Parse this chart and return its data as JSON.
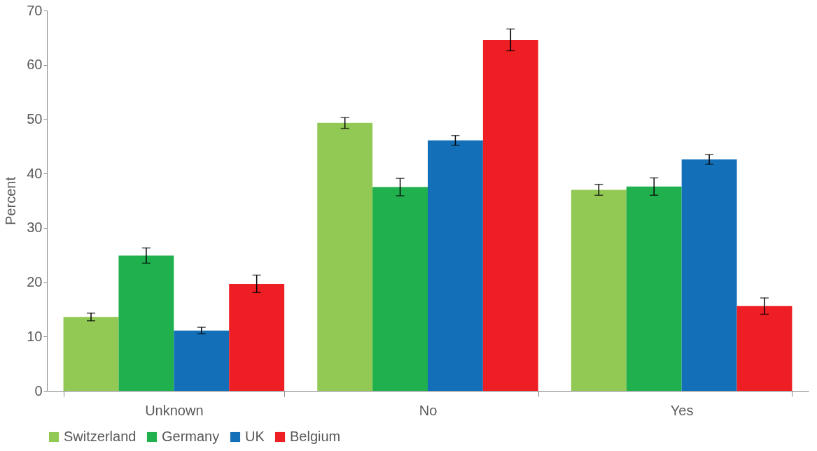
{
  "chart_data": {
    "type": "bar",
    "ylabel": "Percent",
    "categories": [
      "Unknown",
      "No",
      "Yes"
    ],
    "series": [
      {
        "name": "Switzerland",
        "color": "#92c955",
        "values": [
          13.6,
          49.3,
          37.0
        ],
        "errors": [
          0.7,
          1.0,
          1.0
        ]
      },
      {
        "name": "Germany",
        "color": "#21b04e",
        "values": [
          24.9,
          37.5,
          37.6
        ],
        "errors": [
          1.4,
          1.6,
          1.6
        ]
      },
      {
        "name": "UK",
        "color": "#1370b8",
        "values": [
          11.1,
          46.1,
          42.6
        ],
        "errors": [
          0.6,
          0.9,
          0.9
        ]
      },
      {
        "name": "Belgium",
        "color": "#ed1f24",
        "values": [
          19.7,
          64.6,
          15.6
        ],
        "errors": [
          1.6,
          2.0,
          1.5
        ]
      }
    ],
    "ylim": [
      0,
      70
    ],
    "yticks": [
      0,
      10,
      20,
      30,
      40,
      50,
      60,
      70
    ],
    "grid": false,
    "legend": "bottom"
  }
}
